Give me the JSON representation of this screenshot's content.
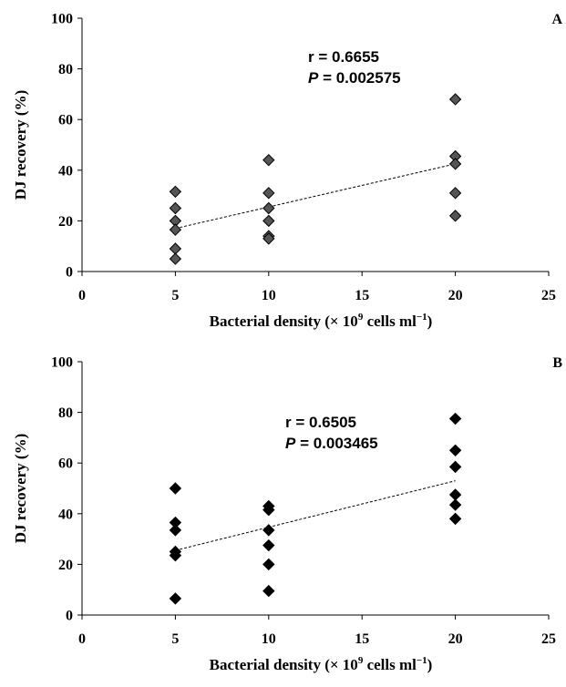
{
  "chart_data": [
    {
      "type": "scatter",
      "panel_label": "A",
      "xlabel": "Bacterial density (× 10",
      "xlabel_sup": "9",
      "xlabel_tail": " cells ml",
      "xlabel_sup2": "−1",
      "xlabel_close": ")",
      "ylabel": "DJ recovery (%)",
      "xlim": [
        0,
        25
      ],
      "ylim": [
        0,
        100
      ],
      "xticks": [
        0,
        5,
        10,
        15,
        20,
        25
      ],
      "yticks": [
        0,
        20,
        40,
        60,
        80,
        100
      ],
      "marker_fill": "#555555",
      "points": [
        {
          "x": 5,
          "y": 31.5
        },
        {
          "x": 5,
          "y": 25
        },
        {
          "x": 5,
          "y": 20
        },
        {
          "x": 5,
          "y": 16.5
        },
        {
          "x": 5,
          "y": 9
        },
        {
          "x": 5,
          "y": 5
        },
        {
          "x": 10,
          "y": 44
        },
        {
          "x": 10,
          "y": 31
        },
        {
          "x": 10,
          "y": 25
        },
        {
          "x": 10,
          "y": 20
        },
        {
          "x": 10,
          "y": 14
        },
        {
          "x": 10,
          "y": 13
        },
        {
          "x": 20,
          "y": 68
        },
        {
          "x": 20,
          "y": 45.5
        },
        {
          "x": 20,
          "y": 42.5
        },
        {
          "x": 20,
          "y": 31
        },
        {
          "x": 20,
          "y": 22
        }
      ],
      "trendline": {
        "x1": 5,
        "y1": 17,
        "x2": 20,
        "y2": 42.5
      },
      "stat_r": "r = 0.6655",
      "stat_p_label": "P",
      "stat_p_value": " = 0.002575"
    },
    {
      "type": "scatter",
      "panel_label": "B",
      "xlabel": "Bacterial density (× 10",
      "xlabel_sup": "9",
      "xlabel_tail": " cells ml",
      "xlabel_sup2": "−1",
      "xlabel_close": ")",
      "ylabel": "DJ recovery (%)",
      "xlim": [
        0,
        25
      ],
      "ylim": [
        0,
        100
      ],
      "xticks": [
        0,
        5,
        10,
        15,
        20,
        25
      ],
      "yticks": [
        0,
        20,
        40,
        60,
        80,
        100
      ],
      "marker_fill": "#000000",
      "points": [
        {
          "x": 5,
          "y": 50
        },
        {
          "x": 5,
          "y": 36.5
        },
        {
          "x": 5,
          "y": 33.5
        },
        {
          "x": 5,
          "y": 25
        },
        {
          "x": 5,
          "y": 23.5
        },
        {
          "x": 5,
          "y": 6.5
        },
        {
          "x": 10,
          "y": 43
        },
        {
          "x": 10,
          "y": 41.5
        },
        {
          "x": 10,
          "y": 33.5
        },
        {
          "x": 10,
          "y": 27.5
        },
        {
          "x": 10,
          "y": 20
        },
        {
          "x": 10,
          "y": 9.5
        },
        {
          "x": 20,
          "y": 77.5
        },
        {
          "x": 20,
          "y": 65
        },
        {
          "x": 20,
          "y": 58.5
        },
        {
          "x": 20,
          "y": 47.5
        },
        {
          "x": 20,
          "y": 43.5
        },
        {
          "x": 20,
          "y": 38
        }
      ],
      "trendline": {
        "x1": 5,
        "y1": 25.5,
        "x2": 20,
        "y2": 53
      },
      "stat_r": "r = 0.6505",
      "stat_p_label": "P",
      "stat_p_value": " = 0.003465"
    }
  ]
}
